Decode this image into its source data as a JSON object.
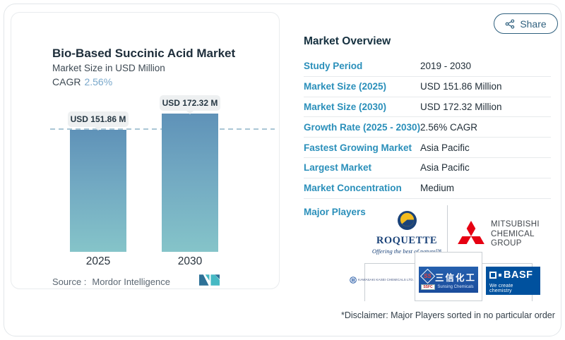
{
  "left_card": {
    "title": "Bio-Based Succinic Acid Market",
    "subtitle": "Market Size in USD Million",
    "cagr_label": "CAGR",
    "cagr_value": "2.56%",
    "source_label": "Source :",
    "source_value": "Mordor Intelligence"
  },
  "chart_data": {
    "type": "bar",
    "categories": [
      "2025",
      "2030"
    ],
    "values": [
      151.86,
      172.32
    ],
    "value_labels": [
      "USD 151.86 M",
      "USD 172.32 M"
    ],
    "title": "Bio-Based Succinic Acid Market",
    "ylabel": "Market Size in USD Million",
    "unit": "USD Million",
    "cagr_percent": 2.56,
    "reference_line_value": 151.86,
    "grid": false,
    "legend": false,
    "bar_gradient_top": "#5f92b8",
    "bar_gradient_bottom": "#85c4c9"
  },
  "share_button": {
    "label": "Share",
    "icon": "share-nodes-icon"
  },
  "overview": {
    "heading": "Market Overview",
    "rows": [
      {
        "label": "Study Period",
        "value": "2019 - 2030"
      },
      {
        "label": "Market Size (2025)",
        "value": "USD 151.86 Million"
      },
      {
        "label": "Market Size (2030)",
        "value": "USD 172.32 Million"
      },
      {
        "label": "Growth Rate (2025 - 2030)",
        "value": "2.56% CAGR"
      },
      {
        "label": "Fastest Growing Market",
        "value": "Asia Pacific"
      },
      {
        "label": "Largest Market",
        "value": "Asia Pacific"
      },
      {
        "label": "Market Concentration",
        "value": "Medium"
      }
    ],
    "major_players_label": "Major Players",
    "disclaimer": "*Disclaimer: Major Players sorted in no particular order"
  },
  "players": {
    "roquette": {
      "name": "ROQUETTE",
      "tagline": "Offering the best of nature™"
    },
    "mitsubishi": {
      "line1": "MITSUBISHI",
      "line2": "CHEMICAL",
      "line3": "GROUP"
    },
    "kawasaki": {
      "name": "KAWASAKI KASEI CHEMICALS LTD."
    },
    "sunsing": {
      "monogram": "SS",
      "badge": "SSFC",
      "name_cn": "三信化工",
      "name_en": "Sunsing Chemicals"
    },
    "basf": {
      "name": "BASF",
      "tagline": "We create chemistry"
    }
  },
  "colors": {
    "accent_blue": "#2a8fba",
    "heading_navy": "#15303f",
    "cagr_value_blue": "#79a8cb",
    "bar_top": "#5f92b8",
    "bar_bottom": "#85c4c9",
    "dashed_line": "#aac6d5",
    "mitsubishi_red": "#e60012",
    "roquette_navy": "#1b4379",
    "roquette_yellow": "#f3bc1f",
    "basf_blue": "#00519e",
    "sunsing_blue": "#1d55a5",
    "mordor_dark_blue": "#2d7197",
    "mordor_teal": "#46b9c4"
  }
}
